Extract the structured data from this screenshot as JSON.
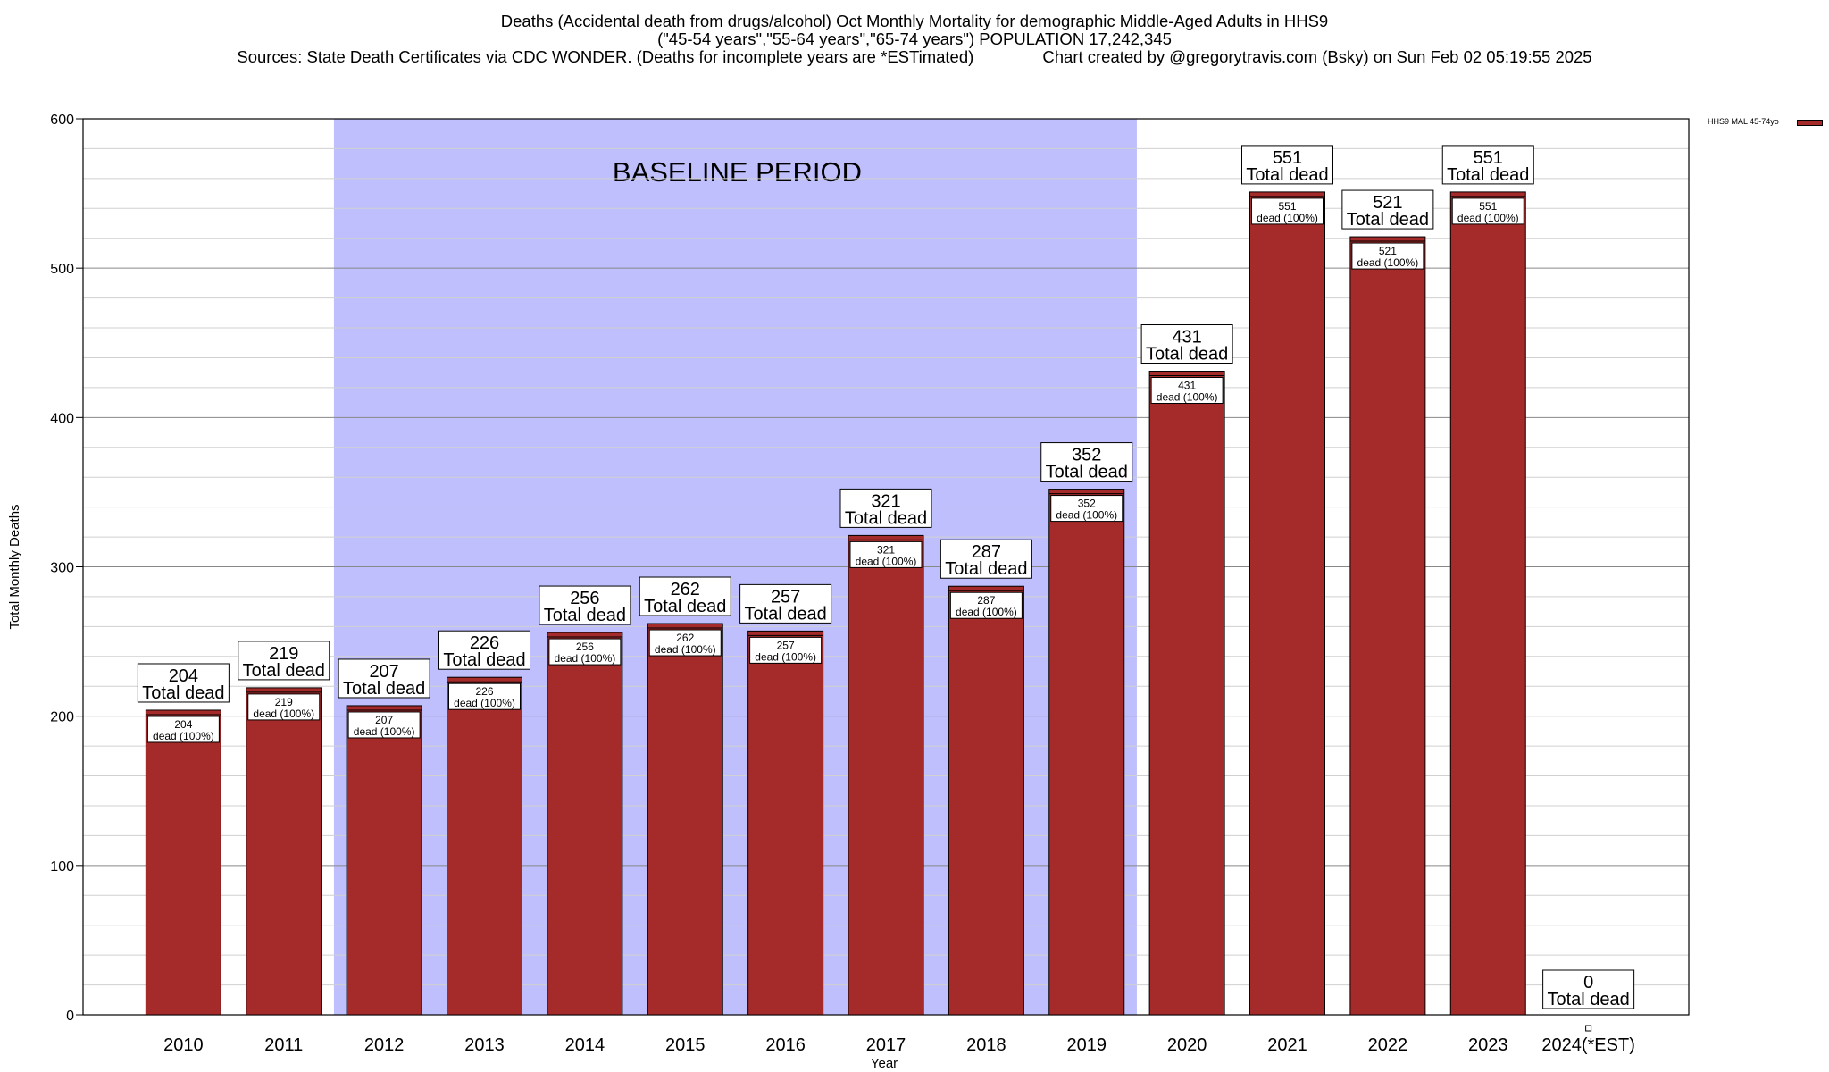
{
  "header": {
    "line1": "Deaths (Accidental death from drugs/alcohol) Oct Monthly Mortality for demographic Middle-Aged Adults in HHS9",
    "line2": "(\"45-54 years\",\"55-64 years\",\"65-74 years\") POPULATION 17,242,345",
    "line3": "Sources: State Death Certificates via CDC WONDER. (Deaths for incomplete years are *ESTimated)               Chart created by @gregorytravis.com (Bsky) on Sun Feb 02 05:19:55 2025"
  },
  "legend": {
    "label": "HHS9 MAL 45-74yo"
  },
  "colors": {
    "bar": "#a52a2a",
    "baseline_shade": "#bfbffd",
    "frame": "#000000",
    "grid": "#d0d0d0"
  },
  "chart_data": {
    "type": "bar",
    "xlabel": "Year",
    "ylabel": "Total Monthly Deaths",
    "ylim": [
      0,
      600
    ],
    "yticks": [
      0,
      100,
      200,
      300,
      400,
      500,
      600
    ],
    "grid": true,
    "legend_position": "top-right",
    "categories": [
      "2010",
      "2011",
      "2012",
      "2013",
      "2014",
      "2015",
      "2016",
      "2017",
      "2018",
      "2019",
      "2020",
      "2021",
      "2022",
      "2023",
      "2024(*EST)"
    ],
    "series": [
      {
        "name": "HHS9 MAL 45-74yo",
        "values": [
          204,
          219,
          207,
          226,
          256,
          262,
          257,
          321,
          287,
          352,
          431,
          551,
          521,
          551,
          0
        ]
      }
    ],
    "total_label_suffix": "Total dead",
    "inner_label_suffix": "dead (100%)",
    "baseline_period": {
      "label": "BASELINE PERIOD",
      "from_category": "2012",
      "to_category": "2019"
    }
  }
}
